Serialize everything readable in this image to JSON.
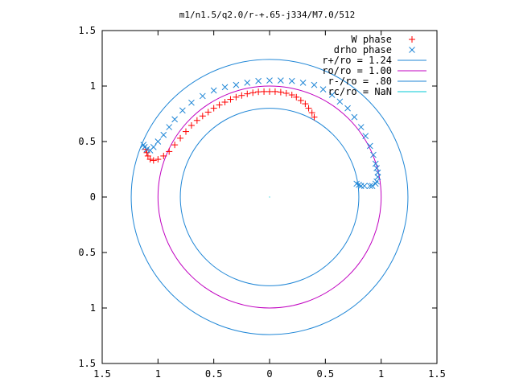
{
  "chart_data": {
    "type": "scatter",
    "title": "m1/n1.5/q2.0/r-+.65-j334/M7.0/512",
    "xlim": [
      -1.5,
      1.5
    ],
    "ylim": [
      -1.5,
      1.5
    ],
    "x_ticks": [
      -1.5,
      -1,
      -0.5,
      0,
      0.5,
      1,
      1.5
    ],
    "x_tick_labels": [
      "1.5",
      "1",
      "0.5",
      "0",
      "0.5",
      "1",
      "1.5"
    ],
    "y_ticks": [
      1.5,
      1,
      0.5,
      0,
      -0.5,
      -1,
      -1.5
    ],
    "y_tick_labels": [
      "1.5",
      "1",
      "0.5",
      "0",
      "0.5",
      "1",
      "1.5"
    ],
    "grid": false,
    "legend_position": "top-right",
    "series": [
      {
        "name": "W phase",
        "kind": "points",
        "marker": "plus",
        "color": "#ff0000",
        "points": [
          [
            0.4,
            0.72
          ],
          [
            0.38,
            0.76
          ],
          [
            0.35,
            0.8
          ],
          [
            0.32,
            0.84
          ],
          [
            0.28,
            0.87
          ],
          [
            0.24,
            0.9
          ],
          [
            0.2,
            0.92
          ],
          [
            0.15,
            0.935
          ],
          [
            0.1,
            0.945
          ],
          [
            0.05,
            0.95
          ],
          [
            0.0,
            0.95
          ],
          [
            -0.05,
            0.95
          ],
          [
            -0.1,
            0.948
          ],
          [
            -0.15,
            0.94
          ],
          [
            -0.2,
            0.93
          ],
          [
            -0.25,
            0.915
          ],
          [
            -0.3,
            0.9
          ],
          [
            -0.35,
            0.88
          ],
          [
            -0.4,
            0.855
          ],
          [
            -0.45,
            0.83
          ],
          [
            -0.5,
            0.8
          ],
          [
            -0.55,
            0.765
          ],
          [
            -0.6,
            0.73
          ],
          [
            -0.65,
            0.69
          ],
          [
            -0.7,
            0.645
          ],
          [
            -0.75,
            0.59
          ],
          [
            -0.8,
            0.53
          ],
          [
            -0.85,
            0.47
          ],
          [
            -0.9,
            0.41
          ],
          [
            -0.95,
            0.37
          ],
          [
            -1.0,
            0.34
          ],
          [
            -1.04,
            0.33
          ],
          [
            -1.07,
            0.34
          ],
          [
            -1.09,
            0.37
          ],
          [
            -1.1,
            0.4
          ],
          [
            -1.11,
            0.43
          ]
        ]
      },
      {
        "name": "drho phase",
        "kind": "points",
        "marker": "cross",
        "color": "#1f86d6",
        "points": [
          [
            0.95,
            0.12
          ],
          [
            0.9,
            0.1
          ],
          [
            0.85,
            0.1
          ],
          [
            0.8,
            0.11
          ],
          [
            0.78,
            0.12
          ],
          [
            0.82,
            0.1
          ],
          [
            0.92,
            0.1
          ],
          [
            0.96,
            0.14
          ],
          [
            0.97,
            0.18
          ],
          [
            0.97,
            0.22
          ],
          [
            0.96,
            0.26
          ],
          [
            0.95,
            0.3
          ],
          [
            0.93,
            0.38
          ],
          [
            0.9,
            0.46
          ],
          [
            0.86,
            0.55
          ],
          [
            0.82,
            0.63
          ],
          [
            0.76,
            0.72
          ],
          [
            0.7,
            0.8
          ],
          [
            0.63,
            0.86
          ],
          [
            0.56,
            0.92
          ],
          [
            0.48,
            0.97
          ],
          [
            0.4,
            1.01
          ],
          [
            0.3,
            1.03
          ],
          [
            0.2,
            1.045
          ],
          [
            0.1,
            1.05
          ],
          [
            0.0,
            1.05
          ],
          [
            -0.1,
            1.045
          ],
          [
            -0.2,
            1.03
          ],
          [
            -0.3,
            1.01
          ],
          [
            -0.4,
            0.99
          ],
          [
            -0.5,
            0.96
          ],
          [
            -0.6,
            0.91
          ],
          [
            -0.7,
            0.85
          ],
          [
            -0.78,
            0.78
          ],
          [
            -0.85,
            0.7
          ],
          [
            -0.9,
            0.63
          ],
          [
            -0.95,
            0.56
          ],
          [
            -1.0,
            0.5
          ],
          [
            -1.04,
            0.45
          ],
          [
            -1.07,
            0.42
          ],
          [
            -1.1,
            0.43
          ],
          [
            -1.12,
            0.45
          ],
          [
            -1.13,
            0.47
          ]
        ]
      },
      {
        "name": "r+/ro = 1.24",
        "kind": "circle",
        "radius": 1.24,
        "color": "#1f86d6"
      },
      {
        "name": "ro/ro = 1.00",
        "kind": "circle",
        "radius": 1.0,
        "color": "#c000c0"
      },
      {
        "name": "r-/ro = .80",
        "kind": "circle",
        "radius": 0.8,
        "color": "#1f86d6"
      },
      {
        "name": "rc/ro = NaN",
        "kind": "circle",
        "radius": null,
        "color": "#00c8d6"
      }
    ]
  }
}
